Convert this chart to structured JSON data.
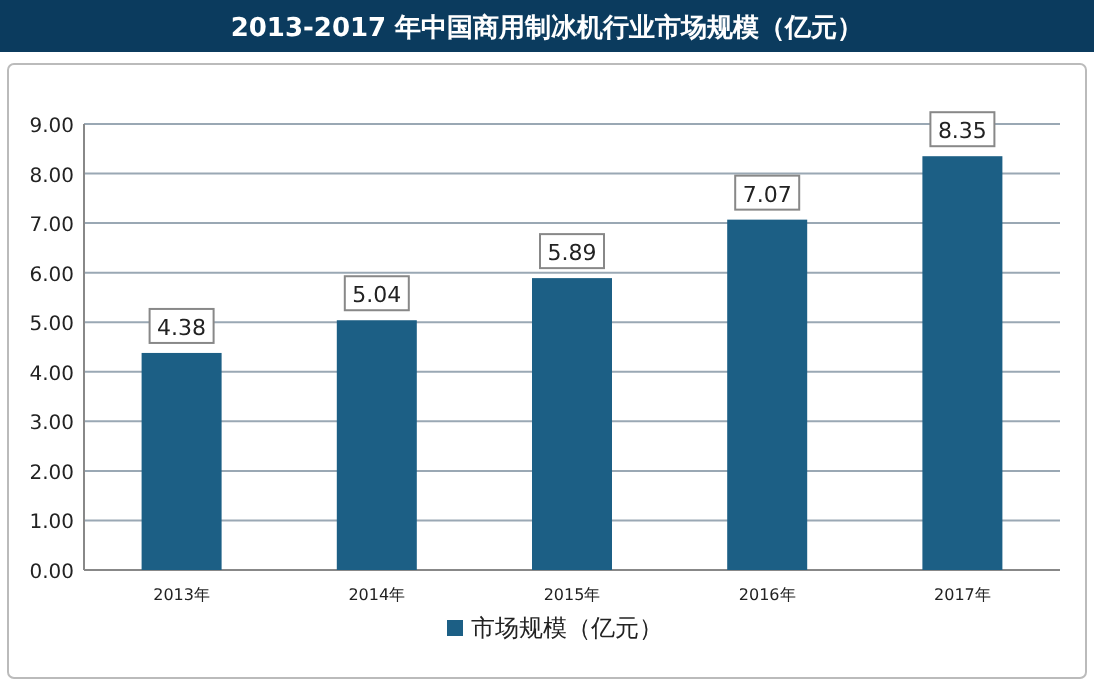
{
  "chart_data": {
    "type": "bar",
    "title": "2013-2017 年中国商用制冰机行业市场规模（亿元）",
    "categories": [
      "2013年",
      "2014年",
      "2015年",
      "2016年",
      "2017年"
    ],
    "series": [
      {
        "name": "市场规模（亿元）",
        "color": "#1c5f85",
        "values": [
          4.38,
          5.04,
          5.89,
          7.07,
          8.35
        ]
      }
    ],
    "ylim": [
      0,
      9
    ],
    "yticks": [
      {
        "value": 0,
        "label": "0.00"
      },
      {
        "value": 1,
        "label": "1.00"
      },
      {
        "value": 2,
        "label": "2.00"
      },
      {
        "value": 3,
        "label": "3.00"
      },
      {
        "value": 4,
        "label": "4.00"
      },
      {
        "value": 5,
        "label": "5.00"
      },
      {
        "value": 6,
        "label": "6.00"
      },
      {
        "value": 7,
        "label": "7.00"
      },
      {
        "value": 8,
        "label": "8.00"
      },
      {
        "value": 9,
        "label": "9.00"
      }
    ],
    "grid": "y",
    "legend": "bottom",
    "data_labels": true
  }
}
